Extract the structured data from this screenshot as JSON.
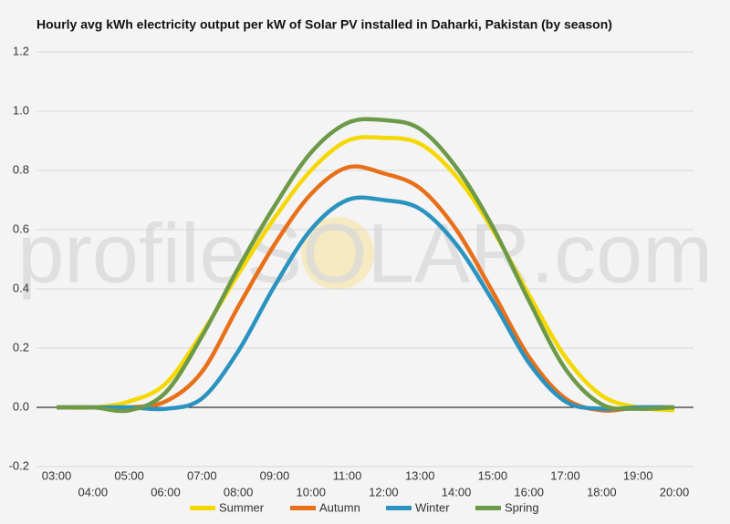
{
  "chart_data": {
    "type": "line",
    "title": "Hourly avg kWh electricity output per kW of Solar PV installed in Daharki, Pakistan (by season)",
    "watermark": "profileSOLAR.com",
    "categories": [
      "03:00",
      "04:00",
      "05:00",
      "06:00",
      "07:00",
      "08:00",
      "09:00",
      "10:00",
      "11:00",
      "12:00",
      "13:00",
      "14:00",
      "15:00",
      "16:00",
      "17:00",
      "18:00",
      "19:00",
      "20:00"
    ],
    "series": [
      {
        "name": "Summer",
        "color": "#f5d800",
        "values": [
          0,
          0,
          0.02,
          0.08,
          0.25,
          0.45,
          0.64,
          0.8,
          0.9,
          0.91,
          0.89,
          0.78,
          0.6,
          0.38,
          0.17,
          0.04,
          0,
          -0.01
        ]
      },
      {
        "name": "Autumn",
        "color": "#e8701a",
        "values": [
          0,
          0,
          0,
          0.02,
          0.12,
          0.34,
          0.55,
          0.72,
          0.81,
          0.79,
          0.74,
          0.6,
          0.39,
          0.17,
          0.03,
          -0.01,
          0,
          0
        ]
      },
      {
        "name": "Winter",
        "color": "#2a93c0",
        "values": [
          0,
          0,
          0,
          -0.005,
          0.03,
          0.19,
          0.41,
          0.6,
          0.7,
          0.7,
          0.67,
          0.55,
          0.36,
          0.15,
          0.02,
          -0.005,
          0,
          0
        ]
      },
      {
        "name": "Spring",
        "color": "#6c9a48",
        "values": [
          0,
          0,
          -0.01,
          0.05,
          0.24,
          0.47,
          0.68,
          0.86,
          0.96,
          0.97,
          0.94,
          0.81,
          0.61,
          0.36,
          0.13,
          0.01,
          -0.005,
          0
        ]
      }
    ],
    "ylim": [
      -0.2,
      1.2
    ],
    "yticks": [
      -0.2,
      {
        "value": 0,
        "label": "0.0"
      },
      0.2,
      0.4,
      0.6,
      0.8,
      {
        "value": 1,
        "label": "1.0"
      },
      1.2
    ],
    "grid": true,
    "legend": "bottom"
  }
}
